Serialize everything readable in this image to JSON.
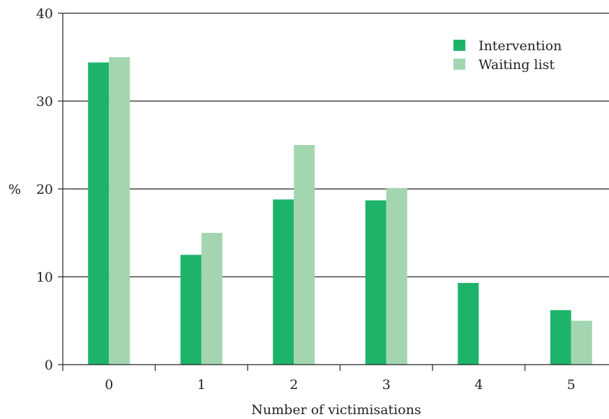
{
  "chart_data": {
    "type": "bar",
    "categories": [
      "0",
      "1",
      "2",
      "3",
      "4",
      "5"
    ],
    "series": [
      {
        "name": "Intervention",
        "values": [
          34.4,
          12.5,
          18.8,
          18.7,
          9.3,
          6.2
        ],
        "color": "#1db46a"
      },
      {
        "name": "Waiting list",
        "values": [
          35.0,
          15.0,
          25.0,
          20.1,
          0,
          5.0
        ],
        "color": "#a3d6b0"
      }
    ],
    "title": "",
    "xlabel": "Number of victimisations",
    "ylabel": "%",
    "ylim": [
      0,
      40
    ],
    "yticks": [
      "0",
      "10",
      "20",
      "30",
      "40"
    ],
    "grid": true,
    "legend_position": "top-right"
  }
}
